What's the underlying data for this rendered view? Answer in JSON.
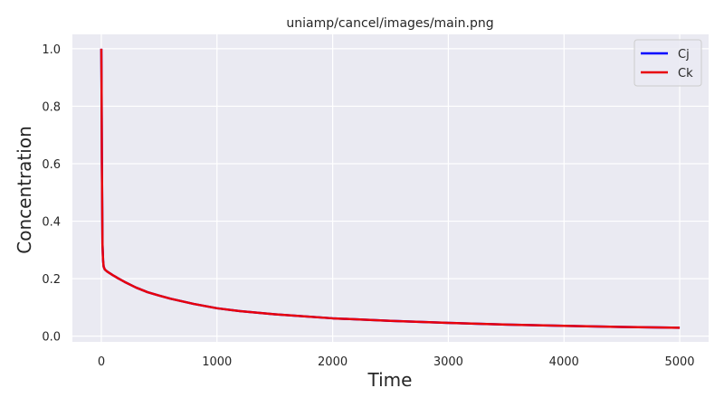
{
  "chart_data": {
    "type": "line",
    "title": "uniamp/cancel/images/main.png",
    "xlabel": "Time",
    "ylabel": "Concentration",
    "xlim": [
      -250,
      5250
    ],
    "ylim": [
      -0.02,
      1.05
    ],
    "xticks": [
      0,
      1000,
      2000,
      3000,
      4000,
      5000
    ],
    "xtick_labels": [
      "0",
      "1000",
      "2000",
      "3000",
      "4000",
      "5000"
    ],
    "yticks": [
      0.0,
      0.2,
      0.4,
      0.6,
      0.8,
      1.0
    ],
    "ytick_labels": [
      "0.0",
      "0.2",
      "0.4",
      "0.6",
      "0.8",
      "1.0"
    ],
    "grid": true,
    "legend_position": "top-right",
    "series": [
      {
        "name": "Cj",
        "color": "#0000ff",
        "x": [
          0,
          2,
          5,
          10,
          15,
          20,
          30,
          50,
          100,
          150,
          200,
          300,
          400,
          500,
          600,
          800,
          1000,
          1200,
          1500,
          2000,
          2500,
          3000,
          3500,
          4000,
          4500,
          5000
        ],
        "y": [
          1.0,
          0.88,
          0.6,
          0.32,
          0.265,
          0.242,
          0.232,
          0.225,
          0.212,
          0.2,
          0.189,
          0.169,
          0.153,
          0.141,
          0.13,
          0.112,
          0.097,
          0.087,
          0.076,
          0.062,
          0.053,
          0.046,
          0.04,
          0.036,
          0.032,
          0.029
        ]
      },
      {
        "name": "Ck",
        "color": "#e8000b",
        "x": [
          0,
          2,
          5,
          10,
          15,
          20,
          30,
          50,
          100,
          150,
          200,
          300,
          400,
          500,
          600,
          800,
          1000,
          1200,
          1500,
          2000,
          2500,
          3000,
          3500,
          4000,
          4500,
          5000
        ],
        "y": [
          1.0,
          0.88,
          0.6,
          0.32,
          0.265,
          0.242,
          0.232,
          0.225,
          0.212,
          0.2,
          0.189,
          0.169,
          0.153,
          0.141,
          0.13,
          0.112,
          0.097,
          0.087,
          0.076,
          0.062,
          0.053,
          0.046,
          0.04,
          0.036,
          0.032,
          0.029
        ]
      }
    ]
  }
}
